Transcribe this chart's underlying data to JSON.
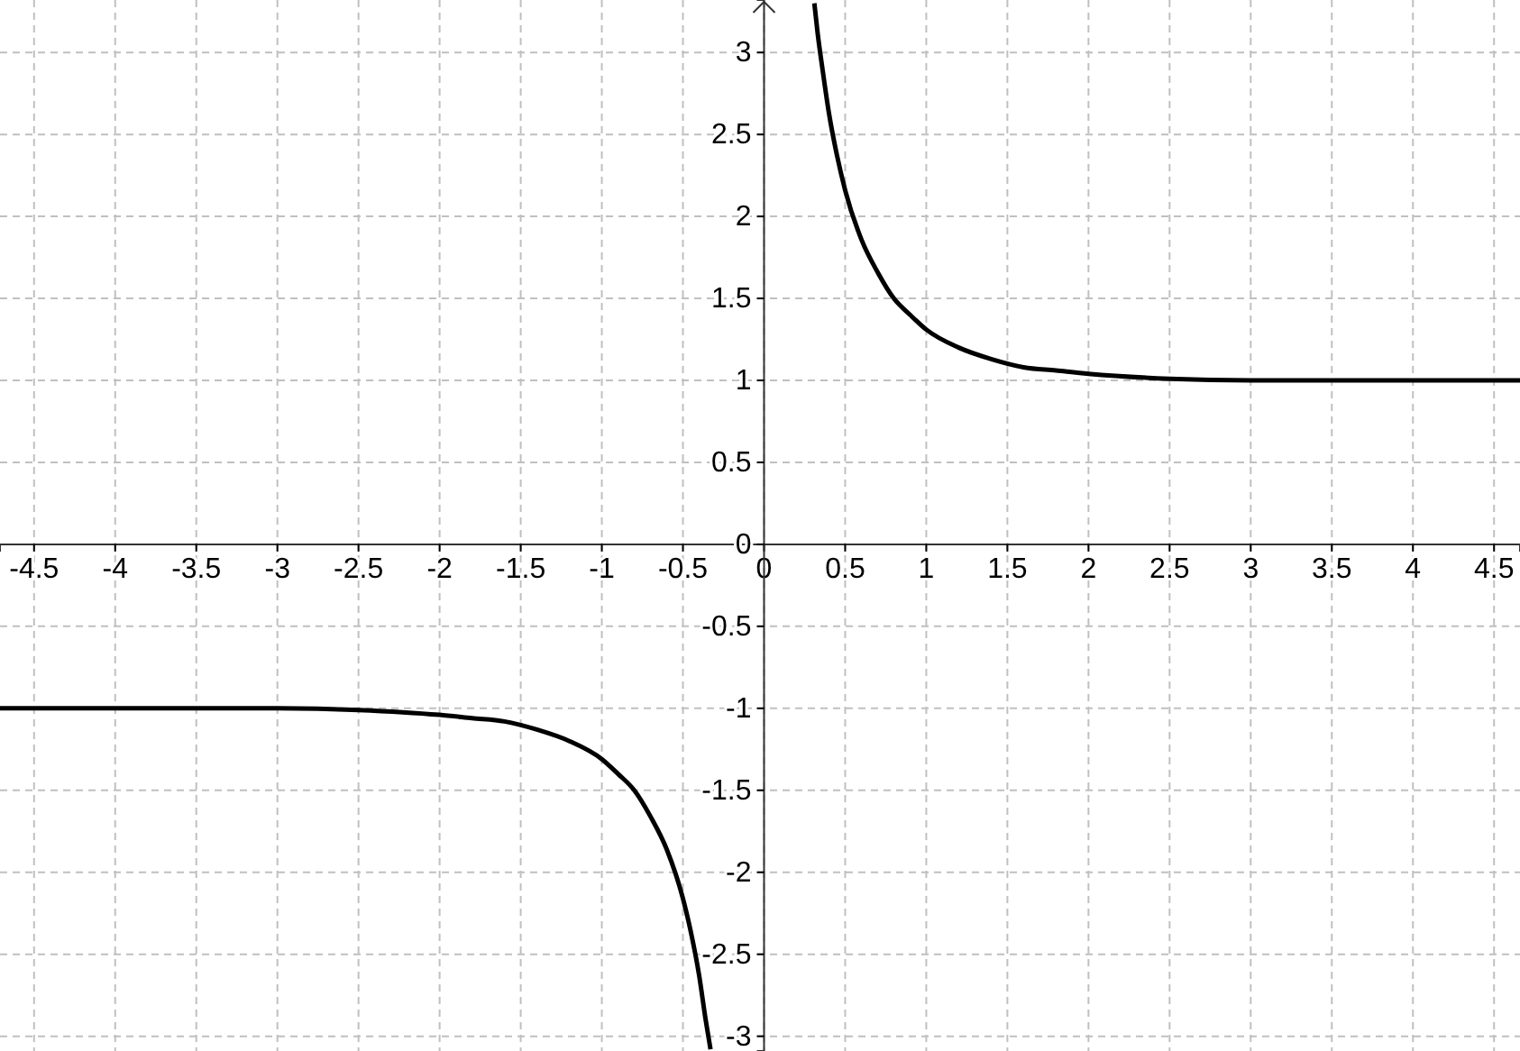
{
  "chart_data": {
    "type": "line",
    "xlim": [
      -4.71,
      4.66
    ],
    "ylim": [
      -3.09,
      3.32
    ],
    "xticks": [
      -4.5,
      -4,
      -3.5,
      -3,
      -2.5,
      -2,
      -1.5,
      -1,
      -0.5,
      0,
      0.5,
      1,
      1.5,
      2,
      2.5,
      3,
      3.5,
      4,
      4.5
    ],
    "yticks": [
      -3,
      -2.5,
      -2,
      -1.5,
      -1,
      -0.5,
      0,
      0.5,
      1,
      1.5,
      2,
      2.5,
      3
    ],
    "grid": true,
    "marker": "none",
    "line_style": "solid",
    "series": [
      {
        "color": "#000000",
        "x": [
          -4.71,
          -4,
          -3.5,
          -3,
          -2.5,
          -2,
          -1.8,
          -1.6,
          -1.4,
          -1.2,
          -1,
          -0.9,
          -0.8,
          -0.7,
          -0.6,
          -0.5,
          -0.45,
          -0.4,
          -0.36,
          -0.33
        ],
        "values": [
          -1,
          -1,
          -1,
          -1,
          -1.01,
          -1.04,
          -1.06,
          -1.08,
          -1.13,
          -1.2,
          -1.31,
          -1.4,
          -1.5,
          -1.66,
          -1.86,
          -2.16,
          -2.37,
          -2.63,
          -2.9,
          -3.08
        ]
      },
      {
        "color": "#000000",
        "x": [
          0.31,
          0.33,
          0.36,
          0.4,
          0.45,
          0.5,
          0.6,
          0.7,
          0.8,
          0.9,
          1,
          1.2,
          1.4,
          1.6,
          1.8,
          2,
          2.5,
          3,
          3.5,
          4,
          4.66
        ],
        "values": [
          3.3,
          3.12,
          2.9,
          2.63,
          2.37,
          2.16,
          1.86,
          1.66,
          1.5,
          1.4,
          1.31,
          1.2,
          1.13,
          1.08,
          1.06,
          1.04,
          1.01,
          1,
          1,
          1,
          1
        ]
      }
    ]
  }
}
